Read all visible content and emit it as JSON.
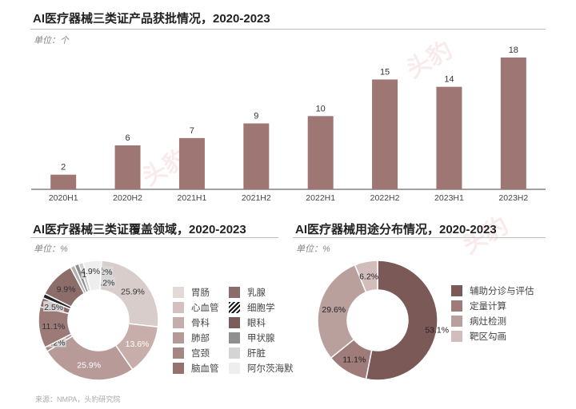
{
  "watermark": "头豹",
  "source": "来源：NMPA，头豹研究院",
  "chart_data": [
    {
      "type": "bar",
      "title": "AI医疗器械三类证产品获批情况，2020-2023",
      "unit": "单位：个",
      "categories": [
        "2020H1",
        "2020H2",
        "2021H1",
        "2021H2",
        "2022H1",
        "2022H2",
        "2023H1",
        "2023H2"
      ],
      "values": [
        2,
        6,
        7,
        9,
        10,
        15,
        14,
        18
      ],
      "ylim": [
        0,
        18
      ],
      "color": "#9e7775",
      "grid": false
    },
    {
      "type": "pie",
      "title": "AI医疗器械三类证覆盖领域，2020-2023",
      "unit": "单位：%",
      "slices": [
        {
          "label": "胃肠",
          "value": 25.9,
          "color": "#d9cdcb",
          "text": "25.9%"
        },
        {
          "label": "心血管",
          "value": 13.6,
          "color": "#c7aeab",
          "text": "13.6%"
        },
        {
          "label": "骨科",
          "value": 25.9,
          "color": "#b89b98",
          "text": "25.9%"
        },
        {
          "label": "肺部",
          "value": 1.2,
          "color": "#a98885",
          "text": "1.2%"
        },
        {
          "label": "宫颈",
          "value": 11.1,
          "color": "#9c7a77",
          "text": "11.1%"
        },
        {
          "label": "脑血管",
          "value": 2.5,
          "color": "#8a6966",
          "text": "2.5%"
        },
        {
          "label": "乳腺",
          "value": 1.2,
          "color": "#222222",
          "text": "1.2%"
        },
        {
          "label": "细胞学",
          "value": 9.9,
          "color": "#8c6d6a",
          "text": "9.9%"
        },
        {
          "label": "眼科",
          "value": 1.2,
          "color": "#b0b0b0",
          "text": "1.2%"
        },
        {
          "label": "甲状腺",
          "value": 1.2,
          "color": "#8d8d8d",
          "text": "1.2%"
        },
        {
          "label": "肝脏",
          "value": 1.2,
          "color": "#d0d0d0",
          "text": "1.2%"
        },
        {
          "label": "阿尔茨海默",
          "value": 4.9,
          "color": "#eeeeee",
          "text": "4.9%"
        }
      ],
      "legend": [
        {
          "label": "胃肠",
          "color": "#e3dad8"
        },
        {
          "label": "心血管",
          "color": "#d2c1bf"
        },
        {
          "label": "骨科",
          "color": "#c4aeab"
        },
        {
          "label": "肺部",
          "color": "#b39a97"
        },
        {
          "label": "宫颈",
          "color": "#a48683"
        },
        {
          "label": "脑血管",
          "color": "#95726f"
        },
        {
          "label": "乳腺",
          "color": "#8a6d6a"
        },
        {
          "label": "细胞学",
          "color": "hatch"
        },
        {
          "label": "眼科",
          "color": "#7a5d5a"
        },
        {
          "label": "甲状腺",
          "color": "#8f8f8f"
        },
        {
          "label": "肝脏",
          "color": "#d4d4d4"
        },
        {
          "label": "阿尔茨海默",
          "color": "#eeeeee"
        }
      ]
    },
    {
      "type": "pie",
      "title": "AI医疗器械用途分布情况，2020-2023",
      "unit": "单位：%",
      "slices": [
        {
          "label": "辅助分诊与评估",
          "value": 53.1,
          "color": "#7b5957",
          "text": "53.1%"
        },
        {
          "label": "定量计算",
          "value": 11.1,
          "color": "#9f7c79",
          "text": "11.1%"
        },
        {
          "label": "病灶检测",
          "value": 29.6,
          "color": "#b9a09d",
          "text": "29.6%"
        },
        {
          "label": "靶区勾画",
          "value": 6.2,
          "color": "#d1bebc",
          "text": "6.2%"
        }
      ]
    }
  ]
}
